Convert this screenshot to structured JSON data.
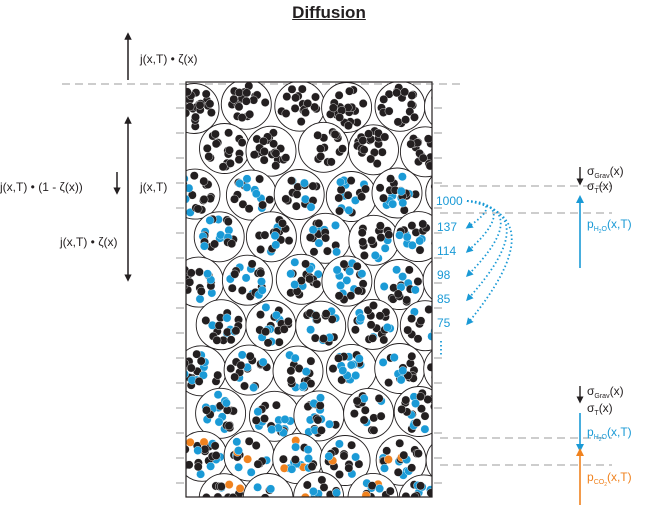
{
  "title": "Diffusion",
  "flux": {
    "top_label": "j(x,T) • ζ(x)",
    "middle_label": "j(x,T)",
    "left_label": "j(x,T) • (1 - ζ(x))",
    "lower_label": "j(x,T) • ζ(x)"
  },
  "stress": {
    "grav_1": {
      "symbol": "σ",
      "sub": "Grav",
      "arg": "(x)"
    },
    "thermal_1": {
      "symbol": "σ",
      "sub": "T",
      "arg": "(x)"
    },
    "grav_2": {
      "symbol": "σ",
      "sub": "Grav",
      "arg": "(x)"
    },
    "thermal_2": {
      "symbol": "σ",
      "sub": "T",
      "arg": "(x)"
    }
  },
  "pressure": {
    "water_1": {
      "symbol": "p",
      "sub": "H",
      "subsub": "2",
      "sub2": "O",
      "arg": "(x,T)"
    },
    "water_2": {
      "symbol": "p",
      "sub": "H",
      "subsub": "2",
      "sub2": "O",
      "arg": "(x,T)"
    },
    "co2": {
      "symbol": "p",
      "sub": "CO",
      "subsub": "2",
      "sub2": "",
      "arg": "(x,T)"
    }
  },
  "pressure_values": [
    "1000",
    "137",
    "114",
    "98",
    "85",
    "75"
  ],
  "colors": {
    "black_grain": "#231f20",
    "blue_grain": "#1a9ad6",
    "orange_grain": "#f0821e",
    "dashed_line": "#9b9b9b"
  }
}
